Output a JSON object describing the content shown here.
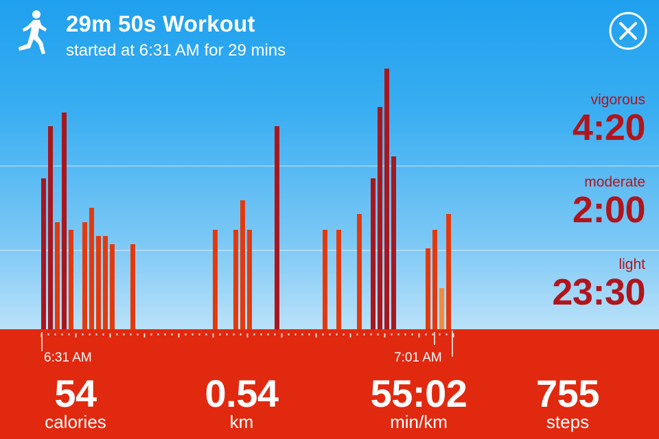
{
  "header": {
    "title": "29m 50s Workout",
    "subtitle": "started at 6:31 AM for 29 mins",
    "activity_icon": "runner-icon",
    "close_icon": "close-circle-icon"
  },
  "intensity": [
    {
      "label": "vigorous",
      "value": "4:20"
    },
    {
      "label": "moderate",
      "value": "2:00"
    },
    {
      "label": "light",
      "value": "23:30"
    }
  ],
  "timeline": {
    "start_label": "6:31 AM",
    "end_label": "7:01 AM"
  },
  "stats": [
    {
      "value": "54",
      "unit": "calories"
    },
    {
      "value": "0.54",
      "unit": "km"
    },
    {
      "value": "55:02",
      "unit": "min/km"
    },
    {
      "value": "755",
      "unit": "steps"
    }
  ],
  "colors": {
    "vigorous": "#a8161e",
    "moderate": "#e23a0e",
    "light": "#f48a38",
    "footer": "#e0290f",
    "accent_text": "#b0151d"
  },
  "chart_data": {
    "type": "bar",
    "x": [
      0,
      1,
      2,
      3,
      4,
      6,
      7,
      8,
      9,
      10,
      13,
      25,
      28,
      29,
      30,
      34,
      41,
      43,
      46,
      48,
      49,
      50,
      51,
      56,
      57,
      58,
      59
    ],
    "values": [
      220,
      296,
      156,
      316,
      145,
      156,
      177,
      136,
      136,
      124,
      124,
      145,
      145,
      188,
      145,
      296,
      145,
      145,
      168,
      220,
      324,
      380,
      252,
      118,
      145,
      60,
      168
    ],
    "intensity": [
      "vigorous",
      "vigorous",
      "moderate",
      "vigorous",
      "moderate",
      "moderate",
      "moderate",
      "moderate",
      "moderate",
      "moderate",
      "moderate",
      "moderate",
      "moderate",
      "moderate",
      "moderate",
      "vigorous",
      "moderate",
      "moderate",
      "moderate",
      "vigorous",
      "vigorous",
      "vigorous",
      "vigorous",
      "moderate",
      "moderate",
      "light",
      "moderate"
    ],
    "xlim": [
      0,
      60
    ],
    "ylim": [
      0,
      400
    ]
  }
}
